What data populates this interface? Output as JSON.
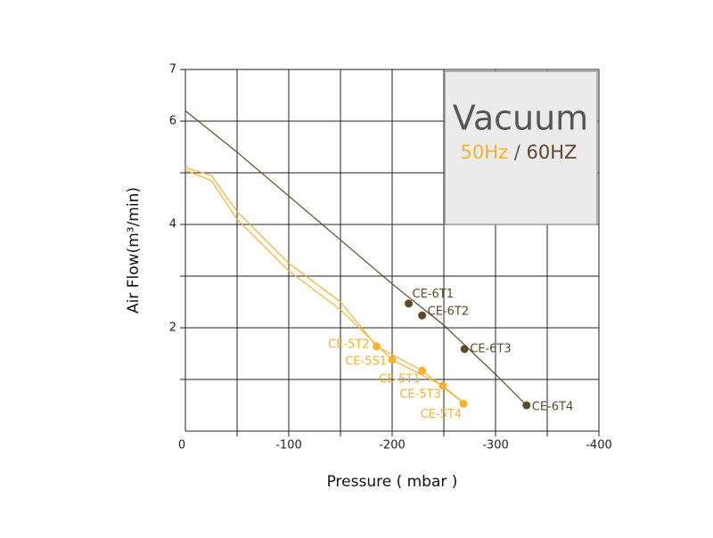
{
  "chart_data": {
    "type": "line",
    "x_label": "Pressure ( mbar )",
    "y_label": "Air Flow(m³/min)",
    "xlim": [
      0,
      -400
    ],
    "ylim": [
      0,
      7
    ],
    "xticks": [
      0,
      -100,
      -200,
      -300,
      -400
    ],
    "yticks": [
      2,
      4,
      6,
      7
    ],
    "xgrid": [
      -50,
      -100,
      -150,
      -200,
      -250,
      -300,
      -350,
      -400
    ],
    "ygrid": [
      1,
      2,
      3,
      4,
      5,
      6,
      7
    ],
    "grid": true,
    "legend": {
      "title": "Vacuum",
      "items": [
        {
          "label": "50Hz",
          "color": "#f5b130"
        },
        {
          "label": "60HZ",
          "color": "#5a4a2a"
        }
      ],
      "separator": "/"
    },
    "series": [
      {
        "color": "#5a4a2a",
        "x": [
          0,
          -50,
          -100,
          -150,
          -200,
          -250,
          -300,
          -330
        ],
        "values": [
          6.2,
          5.4,
          4.55,
          3.7,
          2.85,
          2.05,
          1.1,
          0.5
        ]
      },
      {
        "color": "#f5b130",
        "x": [
          0,
          -25,
          -50,
          -100,
          -150,
          -185,
          -229,
          -270
        ],
        "values": [
          5.1,
          4.95,
          4.25,
          3.25,
          2.5,
          1.64,
          1.17,
          0.53
        ]
      },
      {
        "color": "#f5b130",
        "x": [
          0,
          -25,
          -50,
          -100,
          -150,
          -200,
          -249,
          -270
        ],
        "values": [
          5.05,
          4.85,
          4.1,
          3.1,
          2.35,
          1.38,
          0.88,
          0.53
        ]
      }
    ],
    "points": [
      {
        "label": "CE-6T1",
        "x": -216,
        "y": 2.47,
        "color": "#5a4a2a"
      },
      {
        "label": "CE-6T2",
        "x": -229,
        "y": 2.24,
        "color": "#5a4a2a"
      },
      {
        "label": "CE-6T3",
        "x": -270,
        "y": 1.59,
        "color": "#5a4a2a"
      },
      {
        "label": "CE-6T4",
        "x": -330,
        "y": 0.5,
        "color": "#5a4a2a"
      },
      {
        "label": "CE-5T2",
        "x": -185,
        "y": 1.64,
        "color": "#f5b130"
      },
      {
        "label": "CE-5S1",
        "x": -200,
        "y": 1.38,
        "color": "#f5b130"
      },
      {
        "label": "CE-5T1",
        "x": -229,
        "y": 1.17,
        "color": "#f5b130"
      },
      {
        "label": "CE-5T3",
        "x": -249,
        "y": 0.88,
        "color": "#f5b130"
      },
      {
        "label": "CE-5T4",
        "x": -269,
        "y": 0.53,
        "color": "#f5b130"
      }
    ]
  }
}
